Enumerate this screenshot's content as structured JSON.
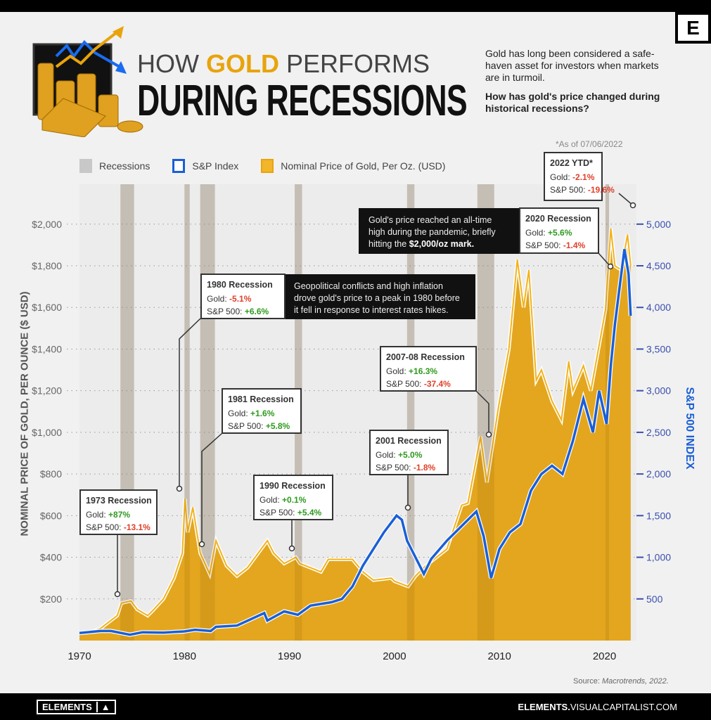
{
  "header": {
    "title_pre": "HOW ",
    "title_accent": "GOLD",
    "title_post": " PERFORMS",
    "title_line2": "DURING RECESSIONS",
    "intro": "Gold has long been considered a safe-haven asset for investors when markets are in turmoil.",
    "question": "How has gold's price changed during historical recessions?",
    "logo_letter": "E"
  },
  "as_of": "*As of 07/06/2022",
  "annotations": {
    "ytd2022": {
      "title": "2022 YTD*",
      "gold_label": "Gold:",
      "gold": "-2.1%",
      "sp_label": "S&P 500:",
      "sp": "-19.6%"
    },
    "r2020": {
      "title": "2020 Recession",
      "gold_label": "Gold:",
      "gold": "+5.6%",
      "sp_label": "S&P 500:",
      "sp": "-1.4%",
      "note_pre": "Gold's price reached an all-time high during the pandemic, briefly hitting the ",
      "note_bold": "$2,000/oz mark."
    },
    "r1980": {
      "title": "1980 Recession",
      "gold_label": "Gold:",
      "gold": "-5.1%",
      "sp_label": "S&P 500:",
      "sp": "+6.6%",
      "note": "Geopolitical conflicts and high inflation drove gold's price to a peak in 1980 before it fell in response to interest rates hikes."
    },
    "r1981": {
      "title": "1981 Recession",
      "gold_label": "Gold:",
      "gold": "+1.6%",
      "sp_label": "S&P 500:",
      "sp": "+5.8%"
    },
    "r2007": {
      "title": "2007-08 Recession",
      "gold_label": "Gold:",
      "gold": "+16.3%",
      "sp_label": "S&P 500:",
      "sp": "-37.4%"
    },
    "r2001": {
      "title": "2001 Recession",
      "gold_label": "Gold:",
      "gold": "+5.0%",
      "sp_label": "S&P 500:",
      "sp": "-1.8%"
    },
    "r1990": {
      "title": "1990 Recession",
      "gold_label": "Gold:",
      "gold": "+0.1%",
      "sp_label": "S&P 500:",
      "sp": "+5.4%"
    },
    "r1973": {
      "title": "1973 Recession",
      "gold_label": "Gold:",
      "gold": "+87%",
      "sp_label": "S&P 500:",
      "sp": "-13.1%"
    }
  },
  "source": {
    "label": "Source:",
    "text": "Macrotrends, 2022."
  },
  "footer": {
    "brand": "ELEMENTS",
    "url_bold": "ELEMENTS.",
    "url_rest": "VISUALCAPITALIST.COM"
  },
  "colors": {
    "gold": "#e8a40c",
    "sp": "#1a5fd6",
    "recession": "#c8c8c8",
    "positive": "#2e9a1e",
    "negative": "#e0402a"
  },
  "chart_data": {
    "type": "area+line",
    "legend": [
      {
        "label": "Recessions",
        "color": "#c8c8c8"
      },
      {
        "label": "S&P Index",
        "color": "#1a5fd6"
      },
      {
        "label": "Nominal Price of Gold, Per Oz. (USD)",
        "color": "#e8a40c"
      }
    ],
    "legend_placement": "top",
    "ylabel_left": "NOMINAL PRICE OF GOLD, PER OUNCE ($ USD)",
    "ylabel_right": "S&P 500 INDEX",
    "x_ticks": [
      "1970",
      "1980",
      "1990",
      "2000",
      "2010",
      "2020"
    ],
    "x_range": [
      1970,
      2022.6
    ],
    "y_left_ticks": [
      "$200",
      "$400",
      "$600",
      "$800",
      "$1,000",
      "$1,200",
      "$1,400",
      "$1,600",
      "$1,800",
      "$2,000"
    ],
    "y_left_range": [
      0,
      2200
    ],
    "y_right_ticks": [
      "500",
      "1,000",
      "1,500",
      "2,000",
      "2,500",
      "3,000",
      "3,500",
      "4,000",
      "4,500",
      "5,000"
    ],
    "y_right_range": [
      0,
      5500
    ],
    "grid": "dotted horizontal",
    "recessions": [
      [
        1973.9,
        1975.2
      ],
      [
        1980.0,
        1980.5
      ],
      [
        1981.5,
        1982.9
      ],
      [
        1990.5,
        1991.2
      ],
      [
        2001.2,
        2001.9
      ],
      [
        2007.9,
        2009.5
      ],
      [
        2020.1,
        2020.4
      ]
    ],
    "gold": [
      [
        1970,
        35
      ],
      [
        1971,
        40
      ],
      [
        1972,
        58
      ],
      [
        1973,
        97
      ],
      [
        1973.6,
        120
      ],
      [
        1974,
        180
      ],
      [
        1974.9,
        190
      ],
      [
        1975.5,
        150
      ],
      [
        1976.5,
        120
      ],
      [
        1977,
        145
      ],
      [
        1978,
        200
      ],
      [
        1979,
        300
      ],
      [
        1979.8,
        420
      ],
      [
        1980.05,
        680
      ],
      [
        1980.3,
        520
      ],
      [
        1980.8,
        640
      ],
      [
        1981.5,
        420
      ],
      [
        1982.4,
        320
      ],
      [
        1983,
        480
      ],
      [
        1984,
        360
      ],
      [
        1985,
        310
      ],
      [
        1986,
        350
      ],
      [
        1987.9,
        480
      ],
      [
        1988.5,
        420
      ],
      [
        1989.5,
        370
      ],
      [
        1990.6,
        400
      ],
      [
        1991,
        370
      ],
      [
        1993,
        330
      ],
      [
        1993.7,
        390
      ],
      [
        1996,
        390
      ],
      [
        1997,
        330
      ],
      [
        1998,
        290
      ],
      [
        1999.7,
        300
      ],
      [
        2000,
        285
      ],
      [
        2001.3,
        260
      ],
      [
        2002,
        310
      ],
      [
        2003,
        360
      ],
      [
        2004,
        400
      ],
      [
        2005,
        440
      ],
      [
        2006.4,
        650
      ],
      [
        2007,
        660
      ],
      [
        2008.2,
        980
      ],
      [
        2008.8,
        760
      ],
      [
        2009.9,
        1120
      ],
      [
        2010.9,
        1400
      ],
      [
        2011.7,
        1830
      ],
      [
        2012.3,
        1600
      ],
      [
        2012.8,
        1780
      ],
      [
        2013.5,
        1250
      ],
      [
        2014,
        1300
      ],
      [
        2015,
        1150
      ],
      [
        2015.9,
        1060
      ],
      [
        2016.6,
        1340
      ],
      [
        2017,
        1200
      ],
      [
        2018,
        1320
      ],
      [
        2018.7,
        1200
      ],
      [
        2019.5,
        1420
      ],
      [
        2020.1,
        1590
      ],
      [
        2020.6,
        1980
      ],
      [
        2021,
        1800
      ],
      [
        2021.6,
        1780
      ],
      [
        2022.2,
        1950
      ],
      [
        2022.5,
        1800
      ]
    ],
    "sp500": [
      [
        1970,
        90
      ],
      [
        1972,
        115
      ],
      [
        1973,
        115
      ],
      [
        1974.8,
        70
      ],
      [
        1976,
        100
      ],
      [
        1978,
        95
      ],
      [
        1980,
        110
      ],
      [
        1981,
        130
      ],
      [
        1982.5,
        115
      ],
      [
        1983,
        165
      ],
      [
        1985,
        180
      ],
      [
        1987.6,
        330
      ],
      [
        1987.9,
        240
      ],
      [
        1989.5,
        350
      ],
      [
        1990.8,
        310
      ],
      [
        1992,
        420
      ],
      [
        1994,
        460
      ],
      [
        1995,
        500
      ],
      [
        1996,
        650
      ],
      [
        1997,
        900
      ],
      [
        1998,
        1100
      ],
      [
        1999,
        1300
      ],
      [
        2000.2,
        1500
      ],
      [
        2000.7,
        1450
      ],
      [
        2001.2,
        1200
      ],
      [
        2002.8,
        800
      ],
      [
        2003.5,
        980
      ],
      [
        2005,
        1200
      ],
      [
        2007,
        1450
      ],
      [
        2007.8,
        1550
      ],
      [
        2008.5,
        1250
      ],
      [
        2009.2,
        750
      ],
      [
        2010,
        1100
      ],
      [
        2011,
        1300
      ],
      [
        2012,
        1400
      ],
      [
        2013,
        1800
      ],
      [
        2014,
        2000
      ],
      [
        2015,
        2100
      ],
      [
        2016,
        2000
      ],
      [
        2017,
        2400
      ],
      [
        2018,
        2900
      ],
      [
        2018.9,
        2500
      ],
      [
        2019.5,
        3000
      ],
      [
        2020.2,
        2600
      ],
      [
        2020.6,
        3300
      ],
      [
        2021,
        3800
      ],
      [
        2021.9,
        4700
      ],
      [
        2022.3,
        4400
      ],
      [
        2022.5,
        3900
      ]
    ]
  }
}
